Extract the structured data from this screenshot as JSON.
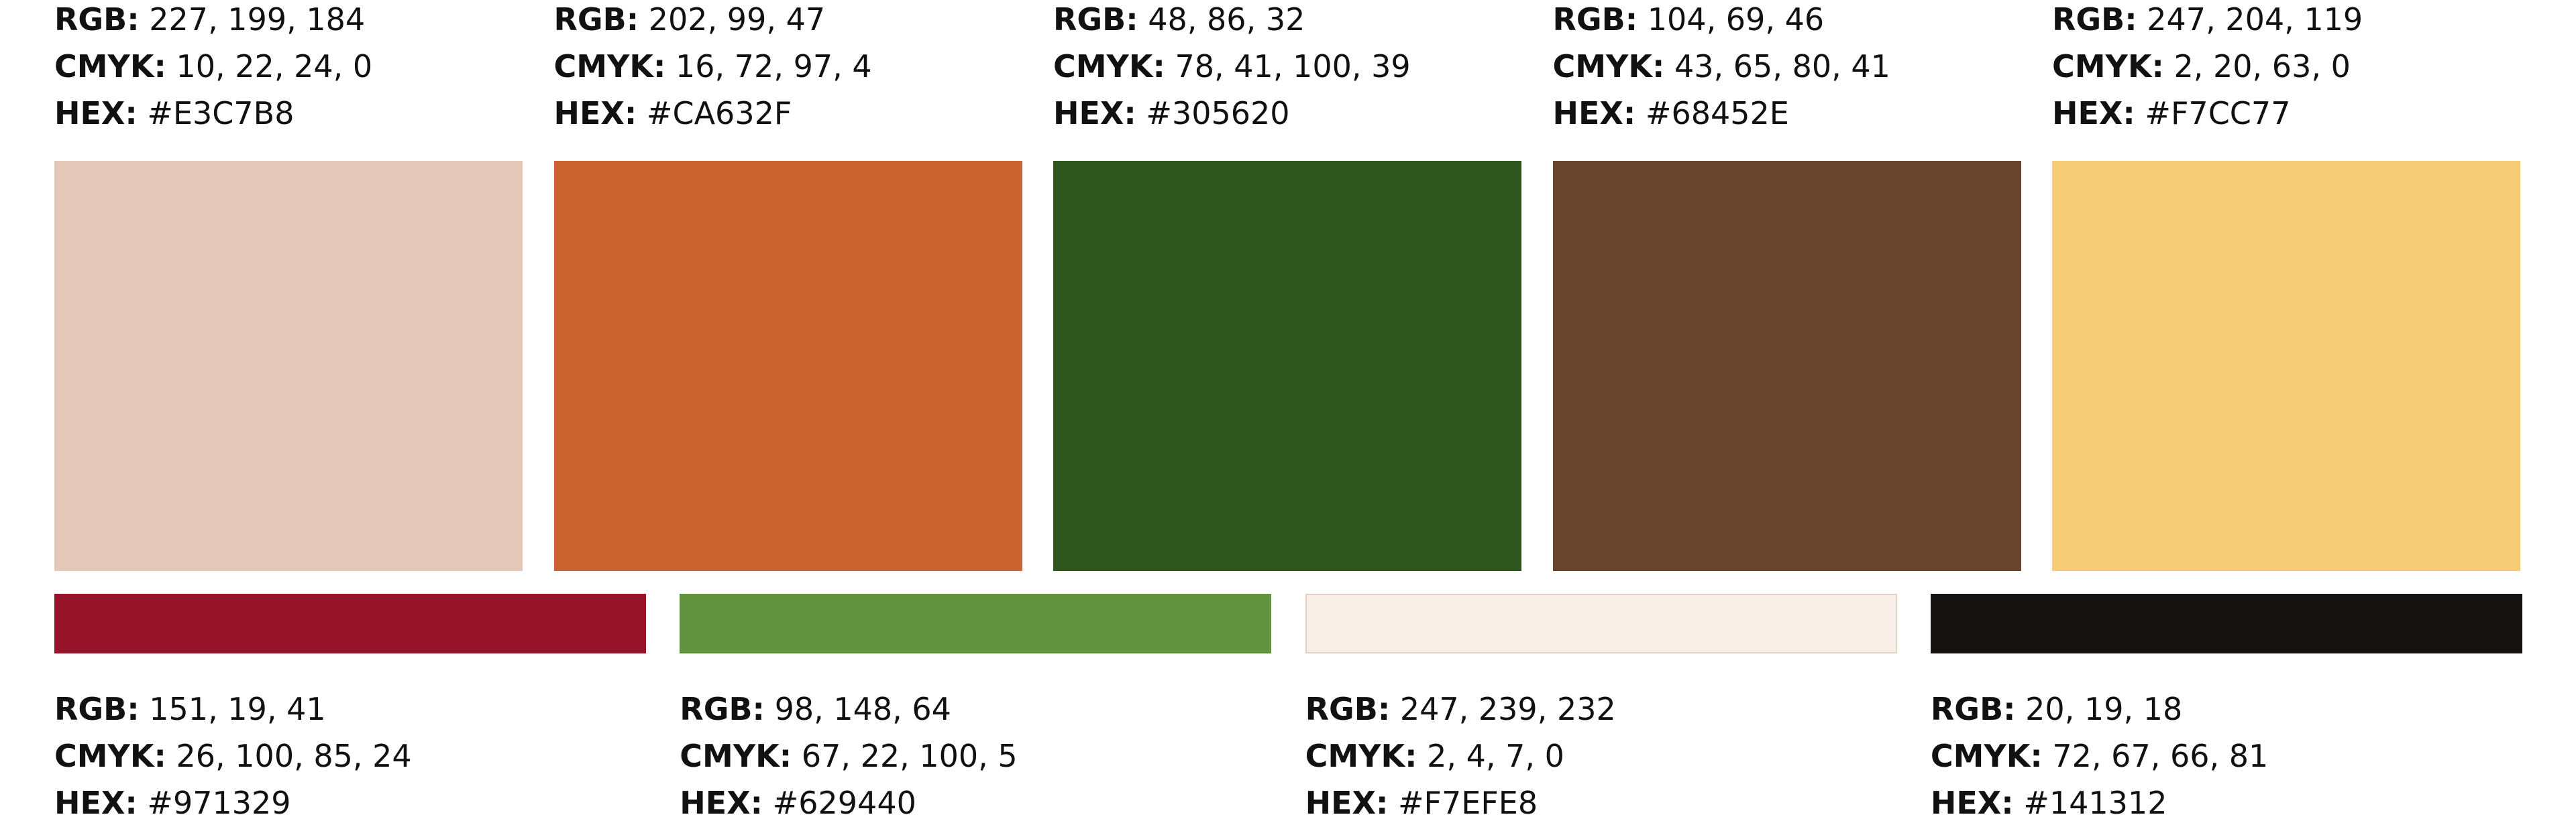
{
  "labels": {
    "rgb": "RGB:",
    "cmyk": "CMYK:",
    "hex": "HEX:"
  },
  "palette": {
    "top": [
      {
        "rgb": "227, 199, 184",
        "cmyk": "10, 22, 24, 0",
        "hex": "#E3C7B8"
      },
      {
        "rgb": "202, 99, 47",
        "cmyk": "16, 72, 97, 4",
        "hex": "#CA632F"
      },
      {
        "rgb": "48, 86, 32",
        "cmyk": "78, 41, 100, 39",
        "hex": "#305620"
      },
      {
        "rgb": "104, 69, 46",
        "cmyk": "43, 65, 80, 41",
        "hex": "#68452E"
      },
      {
        "rgb": "247, 204, 119",
        "cmyk": "2, 20, 63, 0",
        "hex": "#F7CC77"
      }
    ],
    "bottom": [
      {
        "rgb": "151, 19, 41",
        "cmyk": "26, 100, 85, 24",
        "hex": "#971329"
      },
      {
        "rgb": "98, 148, 64",
        "cmyk": "67, 22, 100, 5",
        "hex": "#629440"
      },
      {
        "rgb": "247, 239, 232",
        "cmyk": "2, 4, 7, 0",
        "hex": "#F7EFE8"
      },
      {
        "rgb": "20, 19, 18",
        "cmyk": "72, 67, 66, 81",
        "hex": "#141312"
      }
    ]
  }
}
